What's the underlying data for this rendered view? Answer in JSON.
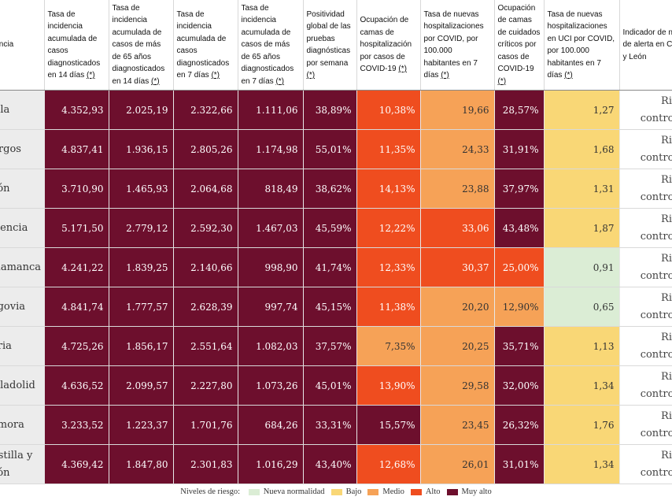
{
  "headers": {
    "provincia": "Provincia",
    "h1_pre": "Tasa de incidencia acumulada de casos diagnosticados en 14 días",
    "h2_pre": "Tasa de incidencia acumulada de casos de más de 65 años diagnosticados en 14 días",
    "h3_pre": "Tasa de incidencia acumulada de casos diagnosticados en 7 días",
    "h4_pre": "Tasa de incidencia acumulada de casos de más de 65 años diagnosticados en 7 días",
    "h5_pre": "Positividad global de las pruebas diagnósticas por semana",
    "h6_pre": "Ocupación de camas de hospitalización por casos de COVID-19",
    "h7_pre": "Tasa de nuevas hospitalizaciones por COVID, por 100.000 habitantes en 7 días",
    "h8_pre": "Ocupación de camas de cuidados críticos por casos de COVID-19",
    "h9_pre": "Tasa de nuevas hospitalizaciones en UCI por COVID, por 100.000 habitantes en 7 días",
    "h10": "Indicador de nivel de alerta en Castilla y León",
    "note": "(*)"
  },
  "colors": {
    "verde": "#dbedd5",
    "bajo": "#f9d776",
    "medio": "#f6a257",
    "alto": "#ef4d1f",
    "muy_alto": "#6d0f2d"
  },
  "rows": [
    {
      "provincia": "Ávila",
      "v": [
        "4.352,93",
        "2.025,19",
        "2.322,66",
        "1.111,06",
        "38,89%",
        "10,38%",
        "19,66",
        "28,57%",
        "1,27"
      ],
      "c": [
        "muy_alto",
        "muy_alto",
        "muy_alto",
        "muy_alto",
        "muy_alto",
        "alto",
        "medio",
        "muy_alto",
        "bajo"
      ],
      "ind": "Riesgo controlado"
    },
    {
      "provincia": "Burgos",
      "v": [
        "4.837,41",
        "1.936,15",
        "2.805,26",
        "1.174,98",
        "55,01%",
        "11,35%",
        "24,33",
        "31,91%",
        "1,68"
      ],
      "c": [
        "muy_alto",
        "muy_alto",
        "muy_alto",
        "muy_alto",
        "muy_alto",
        "alto",
        "medio",
        "muy_alto",
        "bajo"
      ],
      "ind": "Riesgo controlado"
    },
    {
      "provincia": "León",
      "v": [
        "3.710,90",
        "1.465,93",
        "2.064,68",
        "818,49",
        "38,62%",
        "14,13%",
        "23,88",
        "37,97%",
        "1,31"
      ],
      "c": [
        "muy_alto",
        "muy_alto",
        "muy_alto",
        "muy_alto",
        "muy_alto",
        "alto",
        "medio",
        "muy_alto",
        "bajo"
      ],
      "ind": "Riesgo controlado"
    },
    {
      "provincia": "Palencia",
      "v": [
        "5.171,50",
        "2.779,12",
        "2.592,30",
        "1.467,03",
        "45,59%",
        "12,22%",
        "33,06",
        "43,48%",
        "1,87"
      ],
      "c": [
        "muy_alto",
        "muy_alto",
        "muy_alto",
        "muy_alto",
        "muy_alto",
        "alto",
        "alto",
        "muy_alto",
        "bajo"
      ],
      "ind": "Riesgo controlado"
    },
    {
      "provincia": "Salamanca",
      "v": [
        "4.241,22",
        "1.839,25",
        "2.140,66",
        "998,90",
        "41,74%",
        "12,33%",
        "30,37",
        "25,00%",
        "0,91"
      ],
      "c": [
        "muy_alto",
        "muy_alto",
        "muy_alto",
        "muy_alto",
        "muy_alto",
        "alto",
        "alto",
        "alto",
        "verde"
      ],
      "ind": "Riesgo controlado"
    },
    {
      "provincia": "Segovia",
      "v": [
        "4.841,74",
        "1.777,57",
        "2.628,39",
        "997,74",
        "45,15%",
        "11,38%",
        "20,20",
        "12,90%",
        "0,65"
      ],
      "c": [
        "muy_alto",
        "muy_alto",
        "muy_alto",
        "muy_alto",
        "muy_alto",
        "alto",
        "medio",
        "medio",
        "verde"
      ],
      "ind": "Riesgo controlado"
    },
    {
      "provincia": "Soria",
      "v": [
        "4.725,26",
        "1.856,17",
        "2.551,64",
        "1.082,03",
        "37,57%",
        "7,35%",
        "20,25",
        "35,71%",
        "1,13"
      ],
      "c": [
        "muy_alto",
        "muy_alto",
        "muy_alto",
        "muy_alto",
        "muy_alto",
        "medio",
        "medio",
        "muy_alto",
        "bajo"
      ],
      "ind": "Riesgo controlado"
    },
    {
      "provincia": "Valladolid",
      "v": [
        "4.636,52",
        "2.099,57",
        "2.227,80",
        "1.073,26",
        "45,01%",
        "13,90%",
        "29,58",
        "32,00%",
        "1,34"
      ],
      "c": [
        "muy_alto",
        "muy_alto",
        "muy_alto",
        "muy_alto",
        "muy_alto",
        "alto",
        "medio",
        "muy_alto",
        "bajo"
      ],
      "ind": "Riesgo controlado"
    },
    {
      "provincia": "Zamora",
      "v": [
        "3.233,52",
        "1.223,37",
        "1.701,76",
        "684,26",
        "33,31%",
        "15,57%",
        "23,45",
        "26,32%",
        "1,76"
      ],
      "c": [
        "muy_alto",
        "muy_alto",
        "muy_alto",
        "muy_alto",
        "muy_alto",
        "muy_alto",
        "medio",
        "muy_alto",
        "bajo"
      ],
      "ind": "Riesgo controlado"
    },
    {
      "provincia": "Castilla y León",
      "v": [
        "4.369,42",
        "1.847,80",
        "2.301,83",
        "1.016,29",
        "43,40%",
        "12,68%",
        "26,01",
        "31,01%",
        "1,34"
      ],
      "c": [
        "muy_alto",
        "muy_alto",
        "muy_alto",
        "muy_alto",
        "muy_alto",
        "alto",
        "medio",
        "muy_alto",
        "bajo"
      ],
      "ind": "Riesgo controlado"
    }
  ],
  "legend": {
    "label": "Niveles de riesgo:",
    "items": [
      {
        "label": "Nueva normalidad",
        "color": "verde"
      },
      {
        "label": "Bajo",
        "color": "bajo"
      },
      {
        "label": "Medio",
        "color": "medio"
      },
      {
        "label": "Alto",
        "color": "alto"
      },
      {
        "label": "Muy alto",
        "color": "muy_alto"
      }
    ]
  }
}
